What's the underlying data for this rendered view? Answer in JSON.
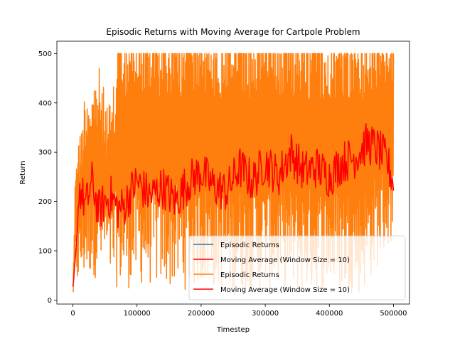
{
  "chart_data": {
    "type": "line",
    "title": "Episodic Returns with Moving Average for Cartpole Problem",
    "xlabel": "Timestep",
    "ylabel": "Return",
    "xlim": [
      -25000,
      525000
    ],
    "ylim": [
      -8,
      525
    ],
    "xticks": [
      0,
      100000,
      200000,
      300000,
      400000,
      500000
    ],
    "xtick_labels": [
      "0",
      "100000",
      "200000",
      "300000",
      "400000",
      "500000"
    ],
    "yticks": [
      0,
      100,
      200,
      300,
      400,
      500
    ],
    "ytick_labels": [
      "0",
      "100",
      "200",
      "300",
      "400",
      "500"
    ],
    "grid": false,
    "legend_position": "lower-right",
    "legend": [
      {
        "label": "Episodic Returns",
        "color": "#1f77b4"
      },
      {
        "label": "Moving Average (Window Size = 10)",
        "color": "#ff0000"
      },
      {
        "label": "Episodic Returns",
        "color": "#ff7f0e"
      },
      {
        "label": "Moving Average (Window Size = 10)",
        "color": "#ff0000"
      }
    ],
    "series": [
      {
        "name": "Episodic Returns",
        "color": "#ff7f0e",
        "x_range": [
          0,
          500000
        ],
        "description_points": {
          "x": [
            0,
            5000,
            10000,
            20000,
            30000,
            40000,
            50000,
            60000,
            70000,
            80000,
            100000,
            120000,
            150000,
            180000,
            200000,
            250000,
            300000,
            350000,
            400000,
            450000,
            500000
          ],
          "low": [
            10,
            15,
            30,
            40,
            50,
            40,
            60,
            30,
            25,
            20,
            30,
            30,
            25,
            20,
            30,
            10,
            20,
            10,
            20,
            10,
            120
          ],
          "high": [
            20,
            355,
            330,
            450,
            450,
            480,
            420,
            400,
            500,
            500,
            500,
            500,
            500,
            500,
            500,
            500,
            500,
            500,
            500,
            500,
            500
          ]
        }
      },
      {
        "name": "Moving Average (Window Size = 10)",
        "color": "#ff0000",
        "x": [
          0,
          5000,
          10000,
          20000,
          30000,
          40000,
          50000,
          60000,
          70000,
          80000,
          90000,
          100000,
          120000,
          140000,
          160000,
          180000,
          200000,
          220000,
          240000,
          260000,
          280000,
          300000,
          320000,
          340000,
          360000,
          380000,
          400000,
          420000,
          440000,
          460000,
          480000,
          490000,
          500000
        ],
        "values": [
          20,
          100,
          230,
          190,
          240,
          180,
          200,
          210,
          185,
          190,
          220,
          240,
          210,
          230,
          200,
          240,
          260,
          230,
          220,
          270,
          240,
          280,
          250,
          300,
          260,
          270,
          250,
          280,
          290,
          320,
          300,
          280,
          240
        ]
      }
    ]
  }
}
